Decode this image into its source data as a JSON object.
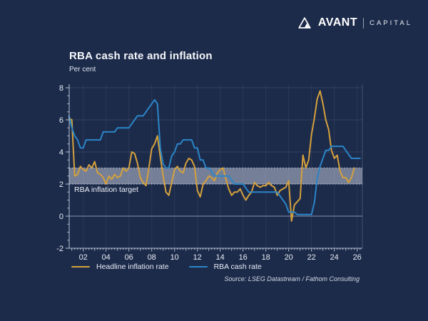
{
  "brand": {
    "name": "AVANT",
    "suffix": "CAPITAL"
  },
  "chart": {
    "title": "RBA cash rate and inflation",
    "unit_label": "Per cent",
    "source": "Source: LSEG Datastream / Fathom Consulting"
  },
  "chart_data": {
    "type": "line",
    "title": "RBA cash rate and inflation",
    "ylabel": "Per cent",
    "ylim": [
      -2,
      8
    ],
    "yticks": [
      -2,
      0,
      2,
      4,
      6,
      8
    ],
    "xtick_years": [
      2002,
      2004,
      2006,
      2008,
      2010,
      2012,
      2014,
      2016,
      2018,
      2020,
      2022,
      2024,
      2026
    ],
    "xtick_labels": [
      "02",
      "04",
      "06",
      "08",
      "10",
      "12",
      "14",
      "16",
      "18",
      "20",
      "22",
      "24",
      "26"
    ],
    "x_start": 2000.75,
    "x_step": 0.25,
    "grid": "horizontal-faint",
    "legend_position": "bottom",
    "target_band": {
      "from": 2,
      "to": 3,
      "label": "RBA inflation target"
    },
    "series": [
      {
        "name": "Headline inflation rate",
        "color": "#d4a13c",
        "values": [
          6.1,
          6.0,
          2.5,
          2.6,
          3.1,
          2.9,
          2.8,
          3.2,
          3.0,
          3.4,
          2.7,
          2.6,
          2.4,
          2.0,
          2.5,
          2.3,
          2.6,
          2.4,
          2.5,
          3.0,
          2.8,
          3.0,
          4.0,
          3.9,
          3.3,
          2.4,
          2.1,
          1.9,
          3.0,
          4.2,
          4.5,
          5.0,
          3.7,
          2.5,
          1.5,
          1.3,
          2.1,
          2.9,
          3.1,
          2.8,
          2.7,
          3.3,
          3.6,
          3.5,
          3.1,
          1.6,
          1.2,
          2.0,
          2.2,
          2.5,
          2.4,
          2.2,
          2.7,
          2.9,
          3.0,
          2.3,
          1.7,
          1.3,
          1.5,
          1.5,
          1.7,
          1.3,
          1.0,
          1.3,
          1.5,
          2.1,
          1.9,
          1.8,
          1.9,
          1.9,
          2.1,
          1.9,
          1.8,
          1.3,
          1.6,
          1.7,
          1.8,
          2.2,
          -0.3,
          0.7,
          0.9,
          1.1,
          3.8,
          3.0,
          3.5,
          5.1,
          6.1,
          7.3,
          7.8,
          7.0,
          6.0,
          5.4,
          4.1,
          3.6,
          3.8,
          2.8,
          2.4,
          2.4,
          2.1,
          2.4,
          3.0
        ]
      },
      {
        "name": "RBA cash rate",
        "color": "#2a85c7",
        "values": [
          6.25,
          5.5,
          5.0,
          4.75,
          4.25,
          4.25,
          4.75,
          4.75,
          4.75,
          4.75,
          4.75,
          4.75,
          5.25,
          5.25,
          5.25,
          5.25,
          5.25,
          5.5,
          5.5,
          5.5,
          5.5,
          5.5,
          5.75,
          6.0,
          6.25,
          6.25,
          6.25,
          6.5,
          6.75,
          7.0,
          7.25,
          7.0,
          4.25,
          3.25,
          3.0,
          3.0,
          3.75,
          4.0,
          4.5,
          4.5,
          4.75,
          4.75,
          4.75,
          4.75,
          4.25,
          4.25,
          3.5,
          3.5,
          3.0,
          3.0,
          2.75,
          2.5,
          2.5,
          2.5,
          2.5,
          2.5,
          2.5,
          2.25,
          2.0,
          2.0,
          2.0,
          2.0,
          1.75,
          1.5,
          1.5,
          1.5,
          1.5,
          1.5,
          1.5,
          1.5,
          1.5,
          1.5,
          1.5,
          1.5,
          1.25,
          1.0,
          0.75,
          0.25,
          0.25,
          0.25,
          0.1,
          0.1,
          0.1,
          0.1,
          0.1,
          0.1,
          0.85,
          2.35,
          3.1,
          3.6,
          4.1,
          4.1,
          4.35,
          4.35,
          4.35,
          4.35,
          4.35,
          4.1,
          3.85,
          3.6,
          3.6,
          3.6,
          3.6
        ]
      }
    ]
  }
}
